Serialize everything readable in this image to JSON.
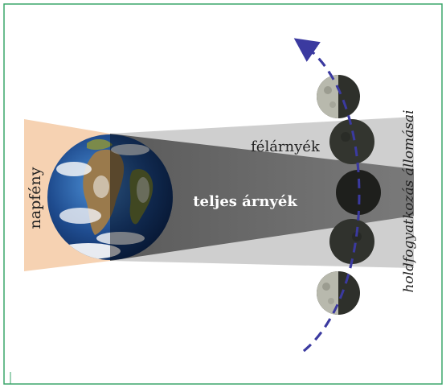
{
  "labels": {
    "sunlight": "napfény",
    "penumbra": "félárnyék",
    "umbra": "teljes árnyék",
    "eclipse_stages": "holdfogyatkozás állomásai"
  },
  "colors": {
    "frame_border": "#3aa56a",
    "sunlight": "#f6d2b2",
    "penumbra": "#cdcdcd",
    "umbra": "#6a6a6a",
    "orbit_arrow": "#3b3aa0",
    "ocean": "#1f4c8f",
    "moon_lit": "#b8b9ad",
    "moon_dark": "#2b2d28"
  },
  "icons": {
    "earth": "earth-globe",
    "moon": "moon-phase",
    "orbit": "dashed-arrow"
  }
}
